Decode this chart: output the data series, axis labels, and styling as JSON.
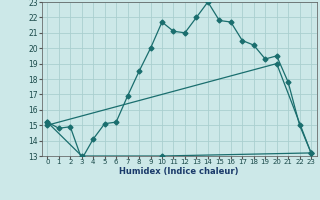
{
  "xlabel": "Humidex (Indice chaleur)",
  "bg_color": "#cce8e8",
  "grid_color": "#aacfcf",
  "line_color": "#1a6e6e",
  "xlim": [
    -0.5,
    23.5
  ],
  "ylim": [
    13,
    23
  ],
  "xticks": [
    0,
    1,
    2,
    3,
    4,
    5,
    6,
    7,
    8,
    9,
    10,
    11,
    12,
    13,
    14,
    15,
    16,
    17,
    18,
    19,
    20,
    21,
    22,
    23
  ],
  "yticks": [
    13,
    14,
    15,
    16,
    17,
    18,
    19,
    20,
    21,
    22,
    23
  ],
  "line1_x": [
    0,
    1,
    2,
    3,
    4,
    5,
    6,
    7,
    8,
    9,
    10,
    11,
    12,
    13,
    14,
    15,
    16,
    17,
    18,
    19,
    20,
    21,
    22,
    23
  ],
  "line1_y": [
    15.2,
    14.8,
    14.9,
    12.8,
    14.1,
    15.1,
    15.2,
    16.9,
    18.5,
    20.0,
    21.7,
    21.1,
    21.0,
    22.0,
    23.0,
    21.8,
    21.7,
    20.5,
    20.2,
    19.3,
    19.5,
    17.8,
    15.0,
    13.2
  ],
  "line2_x": [
    0,
    3,
    10,
    23
  ],
  "line2_y": [
    15.2,
    13.0,
    13.0,
    13.2
  ],
  "line3_x": [
    0,
    20,
    23
  ],
  "line3_y": [
    15.0,
    19.0,
    13.2
  ],
  "marker": "D",
  "marker_size": 2.5,
  "linewidth": 0.9
}
